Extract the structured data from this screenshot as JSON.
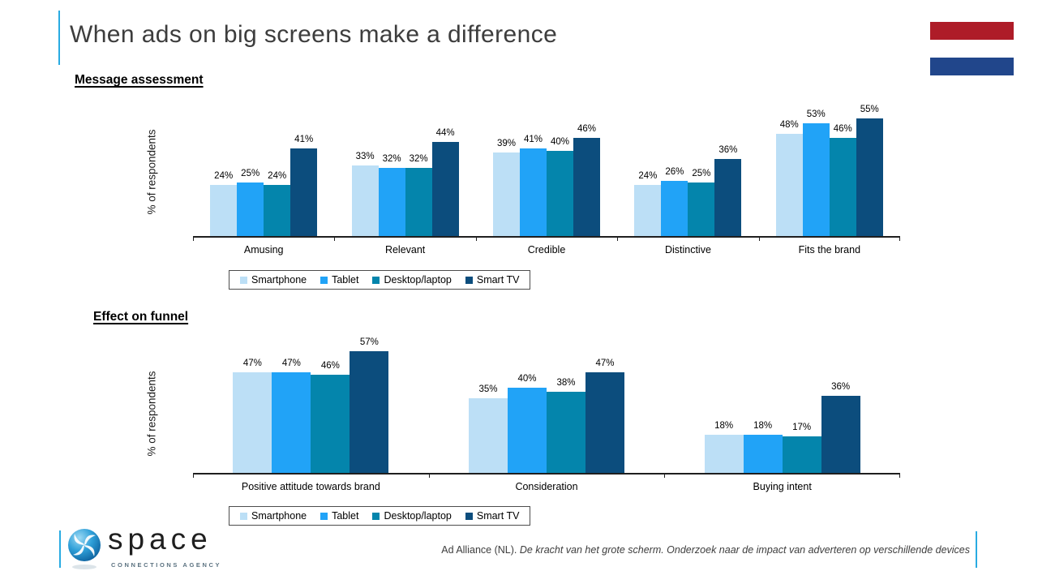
{
  "title": "When ads on big screens make a difference",
  "accent_color": "#29ABE2",
  "flag": {
    "red": "#AE1C28",
    "white": "#FFFFFF",
    "blue": "#21468B"
  },
  "chart_data": [
    {
      "type": "bar",
      "heading": "Message assessment",
      "ylabel": "% of respondents",
      "unit": "%",
      "ylim": [
        0,
        60
      ],
      "grid": false,
      "legend_position": "bottom",
      "categories": [
        "Amusing",
        "Relevant",
        "Credible",
        "Distinctive",
        "Fits the brand"
      ],
      "series": [
        {
          "name": "Smartphone",
          "color": "#BCDFF6",
          "values": [
            24,
            33,
            39,
            24,
            48
          ]
        },
        {
          "name": "Tablet",
          "color": "#21A3F7",
          "values": [
            25,
            32,
            41,
            26,
            53
          ]
        },
        {
          "name": "Desktop/laptop",
          "color": "#0485AC",
          "values": [
            24,
            32,
            40,
            25,
            46
          ]
        },
        {
          "name": "Smart TV",
          "color": "#0C4D7D",
          "values": [
            41,
            44,
            46,
            36,
            55
          ]
        }
      ]
    },
    {
      "type": "bar",
      "heading": "Effect on funnel",
      "ylabel": "% of respondents",
      "unit": "%",
      "ylim": [
        0,
        60
      ],
      "grid": false,
      "legend_position": "bottom",
      "categories": [
        "Positive attitude towards brand",
        "Consideration",
        "Buying intent"
      ],
      "series": [
        {
          "name": "Smartphone",
          "color": "#BCDFF6",
          "values": [
            47,
            35,
            18
          ]
        },
        {
          "name": "Tablet",
          "color": "#21A3F7",
          "values": [
            47,
            40,
            18
          ]
        },
        {
          "name": "Desktop/laptop",
          "color": "#0485AC",
          "values": [
            46,
            38,
            17
          ]
        },
        {
          "name": "Smart TV",
          "color": "#0C4D7D",
          "values": [
            57,
            47,
            36
          ]
        }
      ]
    }
  ],
  "footer": {
    "logo_text": "space",
    "logo_tagline": "CONNECTIONS AGENCY",
    "citation_source": "Ad Alliance (NL).",
    "citation_title": "De kracht van het grote scherm. Onderzoek naar de impact van adverteren op verschillende devices"
  }
}
